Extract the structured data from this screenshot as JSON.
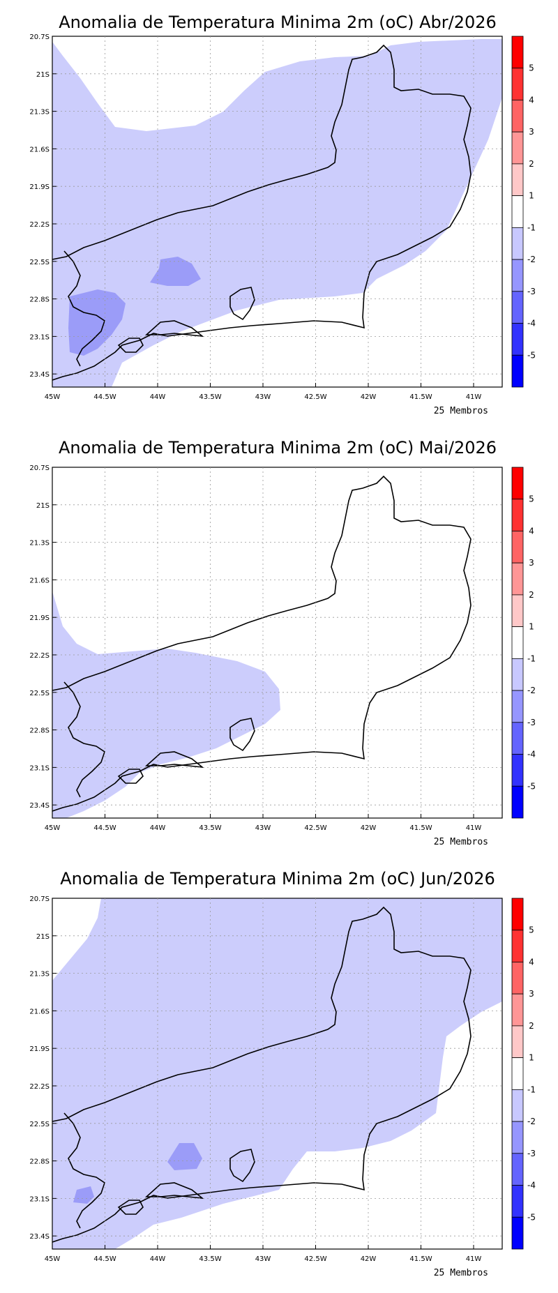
{
  "colors": {
    "anom_-1_-2": "#cccdfc",
    "anom_-2_-3": "#9b9cf8",
    "ocean": "#ffffff",
    "coast": "#000000"
  },
  "x_ticks": [
    "45W",
    "44.5W",
    "44W",
    "43.5W",
    "43W",
    "42.5W",
    "42W",
    "41.5W",
    "41W"
  ],
  "y_ticks": [
    "20.7S",
    "21S",
    "21.3S",
    "21.6S",
    "21.9S",
    "22.2S",
    "22.5S",
    "22.8S",
    "23.1S",
    "23.4S"
  ],
  "colorbar": {
    "labels": [
      "5",
      "4",
      "3",
      "2",
      "1",
      "-1",
      "-2",
      "-3",
      "-4",
      "-5"
    ],
    "colors": [
      "#ff0000",
      "#ff3232",
      "#ff6464",
      "#ff9696",
      "#ffc8c8",
      "#ffffff",
      "#c8c8ff",
      "#9696ff",
      "#6464ff",
      "#3232ff",
      "#0000ff"
    ]
  },
  "maps": [
    {
      "title": "Anomalia de Temperatura Minima 2m (oC) Abr/2026",
      "members": "25 Membros"
    },
    {
      "title": "Anomalia de Temperatura Minima 2m (oC) Mai/2026",
      "members": "25 Membros"
    },
    {
      "title": "Anomalia de Temperatura Minima 2m (oC) Jun/2026",
      "members": "25 Membros"
    }
  ]
}
